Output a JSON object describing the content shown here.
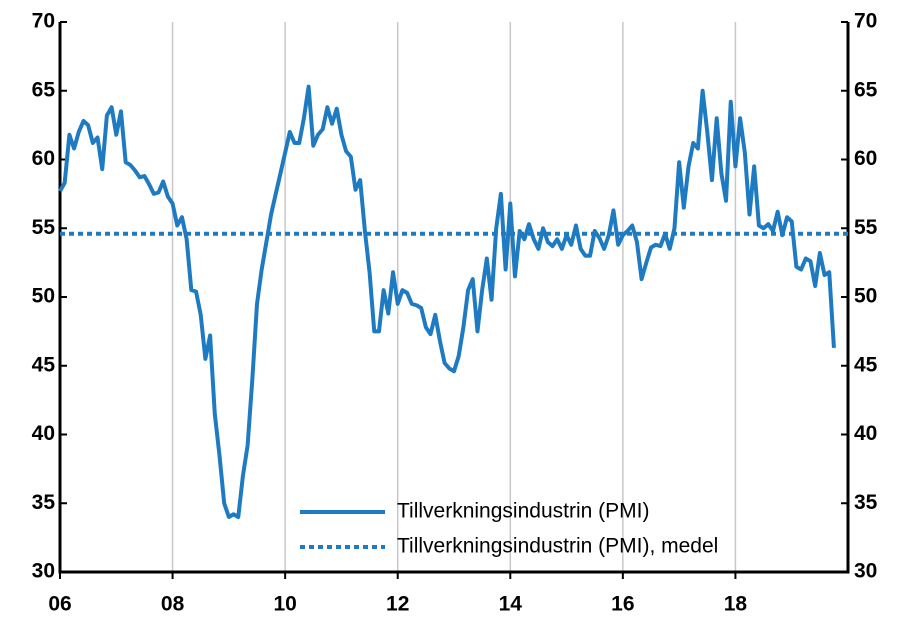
{
  "chart_data": {
    "type": "line",
    "x": [
      6,
      6.083,
      6.167,
      6.25,
      6.333,
      6.417,
      6.5,
      6.583,
      6.667,
      6.75,
      6.833,
      6.917,
      7,
      7.083,
      7.167,
      7.25,
      7.333,
      7.417,
      7.5,
      7.583,
      7.667,
      7.75,
      7.833,
      7.917,
      8,
      8.083,
      8.167,
      8.25,
      8.333,
      8.417,
      8.5,
      8.583,
      8.667,
      8.75,
      8.833,
      8.917,
      9,
      9.083,
      9.167,
      9.25,
      9.333,
      9.417,
      9.5,
      9.583,
      9.667,
      9.75,
      9.833,
      9.917,
      10,
      10.083,
      10.167,
      10.25,
      10.333,
      10.417,
      10.5,
      10.583,
      10.667,
      10.75,
      10.833,
      10.917,
      11,
      11.083,
      11.167,
      11.25,
      11.333,
      11.417,
      11.5,
      11.583,
      11.667,
      11.75,
      11.833,
      11.917,
      12,
      12.083,
      12.167,
      12.25,
      12.333,
      12.417,
      12.5,
      12.583,
      12.667,
      12.75,
      12.833,
      12.917,
      13,
      13.083,
      13.167,
      13.25,
      13.333,
      13.417,
      13.5,
      13.583,
      13.667,
      13.75,
      13.833,
      13.917,
      14,
      14.083,
      14.167,
      14.25,
      14.333,
      14.417,
      14.5,
      14.583,
      14.667,
      14.75,
      14.833,
      14.917,
      15,
      15.083,
      15.167,
      15.25,
      15.333,
      15.417,
      15.5,
      15.583,
      15.667,
      15.75,
      15.833,
      15.917,
      16,
      16.083,
      16.167,
      16.25,
      16.333,
      16.417,
      16.5,
      16.583,
      16.667,
      16.75,
      16.833,
      16.917,
      17,
      17.083,
      17.167,
      17.25,
      17.333,
      17.417,
      17.5,
      17.583,
      17.667,
      17.75,
      17.833,
      17.917,
      18,
      18.083,
      18.167,
      18.25,
      18.333,
      18.417,
      18.5,
      18.583,
      18.667,
      18.75,
      18.833,
      18.917,
      19,
      19.083,
      19.167,
      19.25,
      19.333,
      19.417,
      19.5,
      19.583,
      19.667,
      19.75
    ],
    "series": [
      {
        "name": "Tillverkningsindustrin (PMI)",
        "color": "#1f7bc1",
        "values": [
          57.7,
          58.3,
          61.8,
          60.8,
          62.0,
          62.8,
          62.5,
          61.2,
          61.6,
          59.3,
          63.2,
          63.8,
          61.8,
          63.5,
          59.8,
          59.6,
          59.2,
          58.7,
          58.8,
          58.2,
          57.5,
          57.6,
          58.4,
          57.3,
          56.8,
          55.2,
          55.8,
          54.2,
          50.5,
          50.4,
          48.7,
          45.5,
          47.2,
          41.5,
          38.5,
          35.0,
          34.0,
          34.2,
          34.0,
          37.0,
          39.2,
          44.0,
          49.5,
          52.0,
          54.0,
          56.0,
          57.5,
          59.0,
          60.5,
          62.0,
          61.2,
          61.2,
          63.0,
          65.3,
          61.0,
          61.8,
          62.2,
          63.8,
          62.6,
          63.7,
          61.8,
          60.6,
          60.2,
          57.8,
          58.5,
          54.8,
          51.8,
          47.5,
          47.5,
          50.5,
          48.8,
          51.8,
          49.5,
          50.5,
          50.3,
          49.5,
          49.4,
          49.2,
          47.8,
          47.3,
          48.7,
          46.8,
          45.2,
          44.8,
          44.6,
          45.7,
          47.8,
          50.5,
          51.3,
          47.5,
          50.5,
          52.8,
          49.8,
          55.0,
          57.5,
          52.0,
          56.8,
          51.5,
          54.8,
          54.2,
          55.3,
          54.2,
          53.5,
          55.0,
          54.0,
          53.7,
          54.2,
          53.5,
          54.5,
          53.8,
          55.2,
          53.5,
          53.0,
          53.0,
          54.8,
          54.3,
          53.5,
          54.5,
          56.3,
          53.8,
          54.5,
          54.8,
          55.2,
          54.0,
          51.3,
          52.5,
          53.6,
          53.8,
          53.7,
          54.6,
          53.5,
          55.0,
          59.8,
          56.5,
          59.5,
          61.2,
          60.8,
          65.0,
          62.0,
          58.5,
          63.0,
          59.0,
          57.0,
          64.2,
          59.5,
          63.0,
          60.5,
          56.0,
          59.5,
          55.2,
          55.0,
          55.3,
          54.8,
          56.2,
          54.5,
          55.8,
          55.5,
          52.2,
          52.0,
          52.8,
          52.6,
          50.8,
          53.2,
          51.6,
          51.8,
          46.3
        ]
      },
      {
        "name": "Tillverkningsindustrin (PMI), medel",
        "color": "#1f7bc1",
        "dash": true,
        "x": [
          6,
          20
        ],
        "values": [
          54.6,
          54.6
        ]
      }
    ],
    "xlim": [
      6,
      20
    ],
    "xticks": [
      {
        "value": 6,
        "label": "06"
      },
      {
        "value": 8,
        "label": "08"
      },
      {
        "value": 10,
        "label": "10"
      },
      {
        "value": 12,
        "label": "12"
      },
      {
        "value": 14,
        "label": "14"
      },
      {
        "value": 16,
        "label": "16"
      },
      {
        "value": 18,
        "label": "18"
      }
    ],
    "ylim": [
      30,
      70
    ],
    "yticks": [
      30,
      35,
      40,
      45,
      50,
      55,
      60,
      65,
      70
    ],
    "y2lim": [
      30,
      70
    ],
    "y2ticks": [
      30,
      35,
      40,
      45,
      50,
      55,
      60,
      65,
      70
    ],
    "grid": "x",
    "legend": "lower right"
  }
}
